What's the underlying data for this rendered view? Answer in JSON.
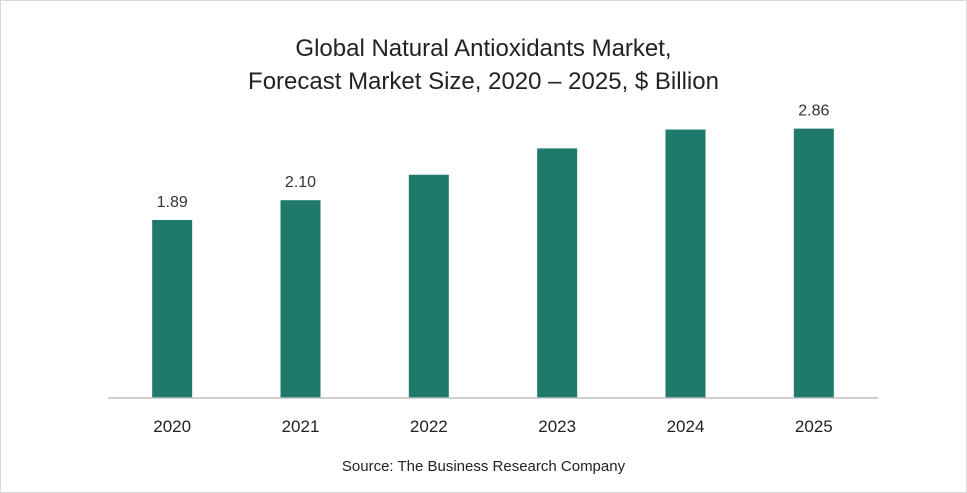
{
  "chart_data": {
    "type": "bar",
    "title_line1": "Global Natural Antioxidants Market,",
    "title_line2": "Forecast Market Size, 2020 – 2025, $ Billion",
    "categories": [
      "2020",
      "2021",
      "2022",
      "2023",
      "2024",
      "2025"
    ],
    "values": [
      1.89,
      2.1,
      2.37,
      2.65,
      2.85,
      2.86
    ],
    "data_labels": [
      "1.89",
      "2.10",
      "",
      "",
      "",
      "2.86"
    ],
    "ylim": [
      0,
      3.1
    ],
    "xlabel": "",
    "ylabel": "",
    "grid": false,
    "bar_color": "#1f7a6b",
    "axis_color": "#bfbfbf"
  },
  "source": "Source: The Business Research Company"
}
